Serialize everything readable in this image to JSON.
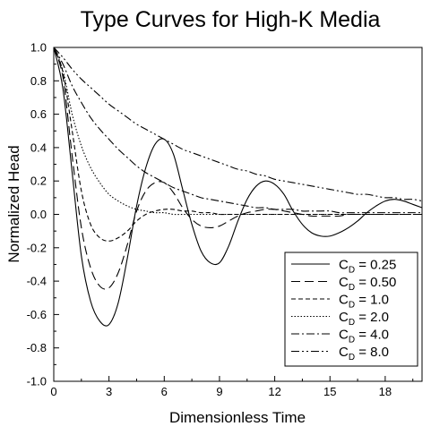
{
  "chart_data": {
    "type": "line",
    "title": "Type Curves for High-K Media",
    "xlabel": "Dimensionless Time",
    "ylabel": "Normalized Head",
    "xlim": [
      0,
      20
    ],
    "ylim": [
      -1.0,
      1.0
    ],
    "x_ticks": [
      0,
      3,
      6,
      9,
      12,
      15,
      18
    ],
    "x_tick_labels": [
      "0",
      "3",
      "6",
      "9",
      "12",
      "15",
      "18"
    ],
    "y_ticks": [
      -1.0,
      -0.8,
      -0.6,
      -0.4,
      -0.2,
      0.0,
      0.2,
      0.4,
      0.6,
      0.8,
      1.0
    ],
    "y_tick_labels": [
      "-1.0",
      "-0.8",
      "-0.6",
      "-0.4",
      "-0.2",
      "0.0",
      "0.2",
      "0.4",
      "0.6",
      "0.8",
      "1.0"
    ],
    "grid": false,
    "legend_position": "bottom-right",
    "x": [
      0,
      0.5,
      1,
      1.5,
      2,
      2.5,
      3,
      3.5,
      4,
      4.5,
      5,
      5.5,
      6,
      6.5,
      7,
      7.5,
      8,
      8.5,
      9,
      9.5,
      10,
      10.5,
      11,
      11.5,
      12,
      12.5,
      13,
      13.5,
      14,
      14.5,
      15,
      15.5,
      16,
      16.5,
      17,
      17.5,
      18,
      18.5,
      19,
      19.5,
      20
    ],
    "series": [
      {
        "name": "C",
        "subscript": "D",
        "value_label": " = 0.25",
        "dash": "",
        "color": "#000000",
        "values": [
          1.0,
          0.75,
          0.25,
          -0.25,
          -0.52,
          -0.64,
          -0.66,
          -0.53,
          -0.26,
          0.05,
          0.28,
          0.42,
          0.45,
          0.36,
          0.15,
          -0.06,
          -0.22,
          -0.29,
          -0.29,
          -0.19,
          -0.04,
          0.09,
          0.17,
          0.2,
          0.18,
          0.12,
          0.02,
          -0.06,
          -0.11,
          -0.13,
          -0.13,
          -0.11,
          -0.08,
          -0.04,
          0.01,
          0.05,
          0.08,
          0.09,
          0.08,
          0.06,
          0.04
        ]
      },
      {
        "name": "C",
        "subscript": "D",
        "value_label": " = 0.50",
        "dash": "10,5",
        "color": "#000000",
        "values": [
          1.0,
          0.82,
          0.35,
          -0.08,
          -0.32,
          -0.43,
          -0.44,
          -0.35,
          -0.18,
          0.02,
          0.14,
          0.19,
          0.19,
          0.13,
          0.04,
          -0.03,
          -0.07,
          -0.08,
          -0.07,
          -0.04,
          -0.01,
          0.01,
          0.02,
          0.03,
          0.03,
          0.02,
          0.01,
          0.0,
          -0.01,
          -0.01,
          -0.01,
          -0.01,
          0.0,
          0.0,
          0.0,
          0.0,
          0.0,
          0.0,
          0.0,
          0.0,
          0.0
        ]
      },
      {
        "name": "C",
        "subscript": "D",
        "value_label": " = 1.0",
        "dash": "5,3",
        "color": "#000000",
        "values": [
          1.0,
          0.85,
          0.5,
          0.14,
          -0.06,
          -0.14,
          -0.16,
          -0.14,
          -0.1,
          -0.04,
          0.0,
          0.02,
          0.03,
          0.03,
          0.02,
          0.02,
          0.01,
          0.01,
          0.0,
          0.0,
          0.0,
          0.0,
          0.0,
          0.0,
          0.0,
          0.0,
          0.0,
          0.0,
          0.0,
          0.0,
          0.0,
          0.0,
          0.0,
          0.0,
          0.0,
          0.0,
          0.0,
          0.0,
          0.0,
          0.0,
          0.0
        ]
      },
      {
        "name": "C",
        "subscript": "D",
        "value_label": " = 2.0",
        "dash": "1.5,2",
        "color": "#000000",
        "values": [
          1.0,
          0.86,
          0.6,
          0.41,
          0.28,
          0.19,
          0.12,
          0.08,
          0.05,
          0.03,
          0.02,
          0.01,
          0.01,
          0.0,
          0.0,
          0.0,
          0.0,
          0.0,
          0.0,
          0.0,
          0.0,
          0.0,
          0.0,
          0.0,
          0.0,
          0.0,
          0.0,
          0.0,
          0.0,
          0.0,
          0.0,
          0.0,
          0.0,
          0.0,
          0.0,
          0.0,
          0.0,
          0.0,
          0.0,
          0.0,
          0.0
        ]
      },
      {
        "name": "C",
        "subscript": "D",
        "value_label": " = 4.0",
        "dash": "9,3,2,3",
        "color": "#000000",
        "values": [
          1.0,
          0.9,
          0.77,
          0.67,
          0.58,
          0.51,
          0.45,
          0.39,
          0.34,
          0.29,
          0.25,
          0.22,
          0.19,
          0.16,
          0.14,
          0.12,
          0.1,
          0.09,
          0.08,
          0.07,
          0.06,
          0.05,
          0.04,
          0.04,
          0.03,
          0.03,
          0.03,
          0.02,
          0.02,
          0.02,
          0.02,
          0.01,
          0.01,
          0.01,
          0.01,
          0.01,
          0.01,
          0.01,
          0.01,
          0.01,
          0.01
        ]
      },
      {
        "name": "C",
        "subscript": "D",
        "value_label": " = 8.0",
        "dash": "9,3,2,3,2,3",
        "color": "#000000",
        "values": [
          1.0,
          0.94,
          0.87,
          0.81,
          0.76,
          0.71,
          0.66,
          0.62,
          0.58,
          0.54,
          0.51,
          0.48,
          0.45,
          0.42,
          0.39,
          0.37,
          0.35,
          0.33,
          0.31,
          0.29,
          0.27,
          0.26,
          0.24,
          0.23,
          0.21,
          0.2,
          0.19,
          0.18,
          0.17,
          0.16,
          0.15,
          0.14,
          0.13,
          0.12,
          0.12,
          0.11,
          0.1,
          0.1,
          0.09,
          0.09,
          0.08
        ]
      }
    ]
  }
}
